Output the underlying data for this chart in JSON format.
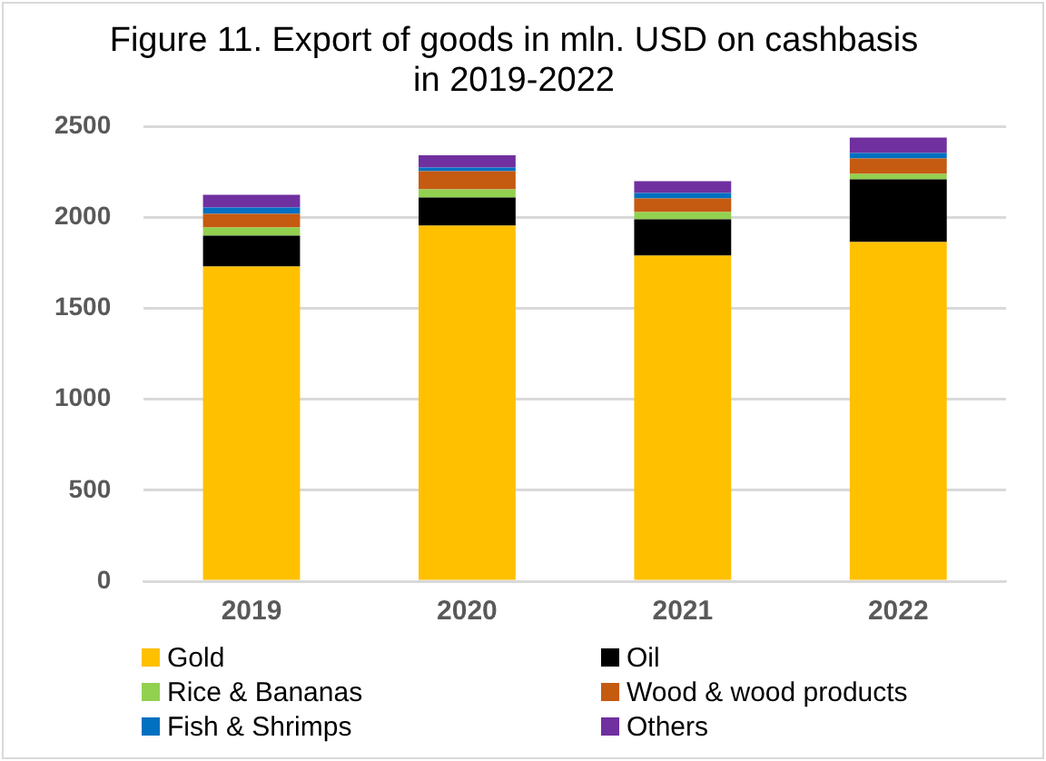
{
  "chart_data": {
    "type": "bar",
    "title": "Figure 11. Export of goods in mln. USD on cashbasis\nin 2019-2022",
    "categories": [
      "2019",
      "2020",
      "2021",
      "2022"
    ],
    "stacked": true,
    "series": [
      {
        "name": "Gold",
        "color": "#ffc000",
        "values": [
          1730,
          1955,
          1790,
          1865
        ]
      },
      {
        "name": "Oil",
        "color": "#000000",
        "values": [
          170,
          155,
          200,
          345
        ]
      },
      {
        "name": "Rice & Bananas",
        "color": "#92d050",
        "values": [
          45,
          45,
          40,
          30
        ]
      },
      {
        "name": "Wood & wood products",
        "color": "#c55a11",
        "values": [
          75,
          100,
          75,
          85
        ]
      },
      {
        "name": "Fish & Shrimps",
        "color": "#0070c0",
        "values": [
          35,
          20,
          30,
          30
        ]
      },
      {
        "name": "Others",
        "color": "#7030a0",
        "values": [
          70,
          67,
          65,
          85
        ]
      }
    ],
    "ylim": [
      0,
      2500
    ],
    "yticks": [
      0,
      500,
      1000,
      1500,
      2000,
      2500
    ],
    "grid": "y",
    "legend": "bottom"
  }
}
